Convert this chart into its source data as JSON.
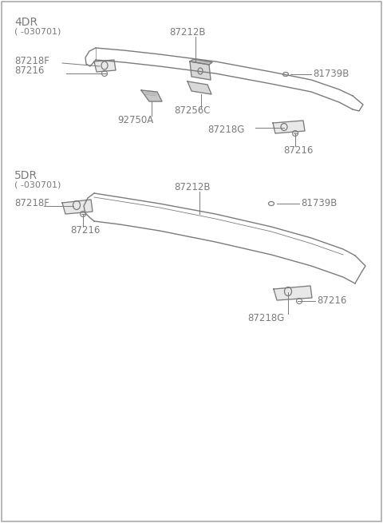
{
  "background_color": "#ffffff",
  "line_color": "#7a7a7a",
  "text_color": "#7a7a7a",
  "font_size": 8.5,
  "label_font_size": 10,
  "4dr_label": "4DR",
  "4dr_sublabel": "( -030701)",
  "5dr_label": "5DR",
  "5dr_sublabel": "( -030701)",
  "parts_4dr": [
    "87212B",
    "81739B",
    "87216",
    "87218F",
    "92750A",
    "87256C",
    "87218G",
    "87216"
  ],
  "parts_5dr": [
    "87212B",
    "81739B",
    "87218F",
    "87216",
    "87216",
    "87218G"
  ]
}
